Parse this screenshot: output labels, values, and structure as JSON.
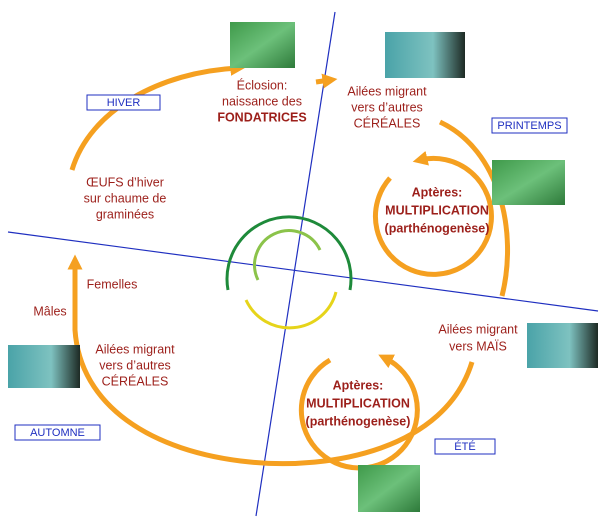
{
  "seasons": [
    "HIVER",
    "PRINTEMPS",
    "ÉTÉ",
    "AUTOMNE"
  ],
  "stages": [
    {
      "lines": [
        "Éclosion:",
        "naissance des",
        "FONDATRICES"
      ]
    },
    {
      "lines": [
        "Ailées migrant",
        "vers d’autres",
        "CÉRÉALES"
      ]
    },
    {
      "lines": [
        "Aptères:",
        "MULTIPLICATION",
        "(parthénogenèse)"
      ]
    },
    {
      "lines": [
        "Ailées migrant",
        "vers MAÏS"
      ]
    },
    {
      "lines": [
        "Aptères:",
        "MULTIPLICATION",
        "(parthénogenèse)"
      ]
    },
    {
      "lines": [
        "Ailées migrant",
        "vers d’autres",
        "CÉRÉALES"
      ]
    },
    {
      "lines": [
        "Mâles"
      ]
    },
    {
      "lines": [
        "Femelles"
      ]
    },
    {
      "lines": [
        "ŒUFS d’hiver",
        "sur chaume de",
        "graminées"
      ]
    }
  ]
}
